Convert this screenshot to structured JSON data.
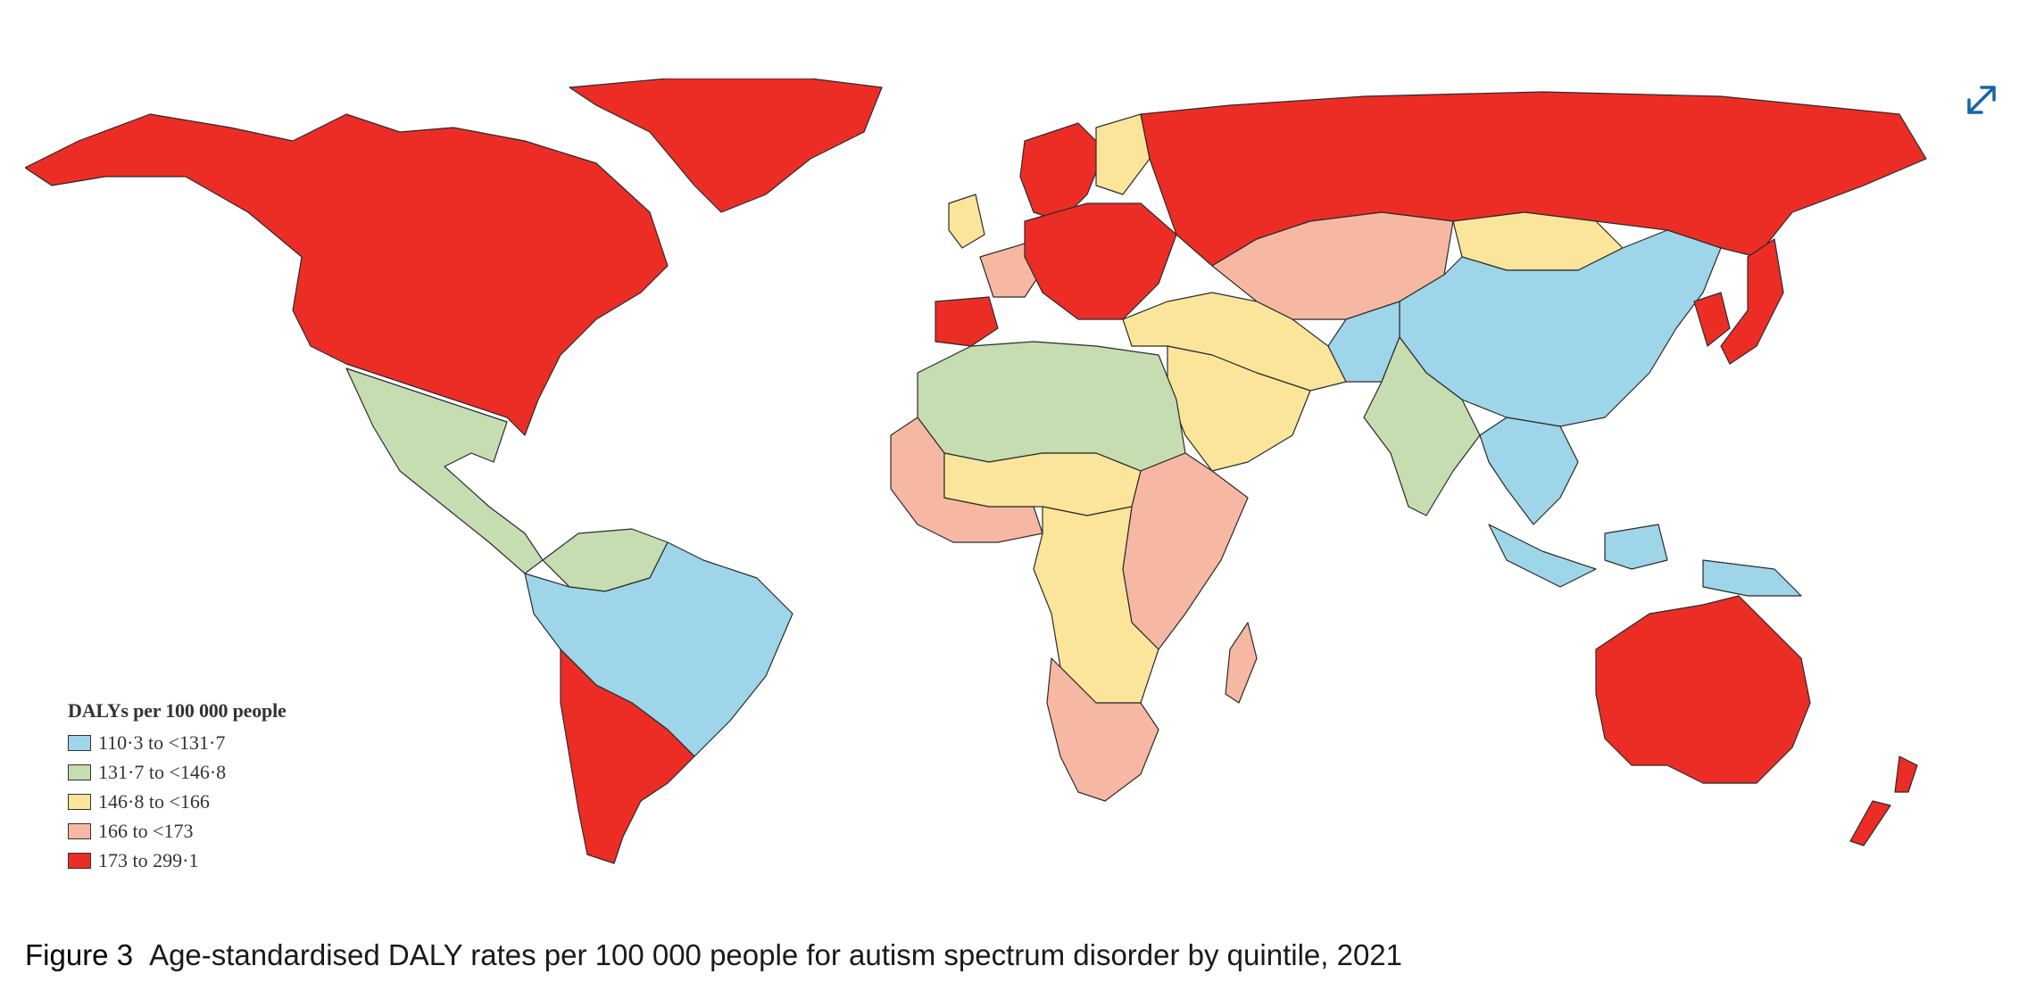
{
  "figure": {
    "caption_label": "Figure 3",
    "caption_text": "Age-standardised DALY rates per 100 000 people for autism spectrum disorder by quintile, 2021"
  },
  "legend": {
    "title": "DALYs per 100 000 people",
    "items": [
      {
        "label": "110·3 to <131·7",
        "color": "#9ed5e8"
      },
      {
        "label": "131·7 to <146·8",
        "color": "#c5ddb0"
      },
      {
        "label": "146·8 to <166",
        "color": "#fbe59a"
      },
      {
        "label": "166 to <173",
        "color": "#f6b8a3"
      },
      {
        "label": "173 to 299·1",
        "color": "#ec2d26"
      }
    ]
  },
  "controls": {
    "expand_icon": "expand-diagonal-arrows-icon",
    "expand_color": "#1565a8"
  },
  "map_regions": {
    "north_america": 4,
    "greenland": 4,
    "mexico_central_america": 1,
    "northern_south_america": 1,
    "brazil_andes": 0,
    "southern_cone": 4,
    "western_europe": 2,
    "france_region": 3,
    "iberia": 4,
    "central_eastern_europe": 4,
    "scandinavia": 4,
    "finland": 2,
    "russia": 4,
    "central_asia": 3,
    "mongolia": 2,
    "china": 0,
    "japan_korea": 4,
    "india": 1,
    "pakistan_afghanistan": 0,
    "iran_middle_east": 2,
    "arabia": 2,
    "north_africa": 1,
    "sahel_west_africa": 2,
    "west_coast_africa": 3,
    "east_horn_africa": 3,
    "central_africa": 2,
    "southern_africa": 3,
    "madagascar": 3,
    "southeast_asia": 0,
    "indonesia": 0,
    "australia": 4,
    "new_zealand": 4
  }
}
